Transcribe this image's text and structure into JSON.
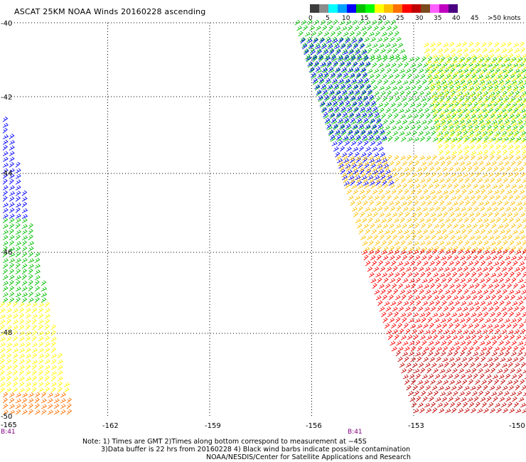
{
  "title": "ASCAT 25KM NOAA Winds 20160228 ascending",
  "legend": {
    "labels": [
      "0",
      "5",
      "10",
      "15",
      "20",
      "25",
      "30",
      "35",
      "40",
      "45",
      ">50 knots"
    ],
    "colors": [
      "#3c3c3c",
      "#8c8c8c",
      "#00ffff",
      "#00a0ff",
      "#0000ff",
      "#00c000",
      "#00ff00",
      "#ffff00",
      "#ffc000",
      "#ff7000",
      "#ff0000",
      "#c00000",
      "#7a4a1e",
      "#ff60ff",
      "#c000c0",
      "#4b0082"
    ]
  },
  "map": {
    "lon_labels": [
      "-165",
      "-162",
      "-159",
      "-156",
      "-153",
      "-150"
    ],
    "lat_labels": [
      "-40",
      "-42",
      "-44",
      "-46",
      "-48",
      "-50"
    ],
    "pass_labels": [
      "B:41",
      "B:41"
    ]
  },
  "notes": {
    "line1": "Note: 1) Times are GMT 2)Times along bottom correspond to measurement at −45S",
    "line2": "3)Data buffer is 22 hrs from 20160228 4) Black wind barbs indicate possible contamination",
    "line3": "NOAA/NESDIS/Center for Satellite Applications and Research"
  },
  "wind_zones": [
    {
      "swath": "east",
      "lat_from": -40.0,
      "lat_to": -41.0,
      "speed_kt": 20,
      "color": "#00c000"
    },
    {
      "swath": "east",
      "lat_from": -41.0,
      "lat_to": -43.3,
      "speed_kt": 17,
      "color": "#00c000"
    },
    {
      "swath": "east",
      "lat_from": -40.5,
      "lat_to": -44.4,
      "speed_kt": 12,
      "color": "#0000ff"
    },
    {
      "swath": "east",
      "lat_from": -40.6,
      "lat_to": -43.6,
      "speed_kt": 27,
      "color": "#ffff00"
    },
    {
      "swath": "east",
      "lat_from": -43.6,
      "lat_to": -46.0,
      "speed_kt": 30,
      "color": "#ffc000"
    },
    {
      "swath": "east",
      "lat_from": -46.0,
      "lat_to": -48.5,
      "speed_kt": 35,
      "color": "#ff0000"
    },
    {
      "swath": "east",
      "lat_from": -48.5,
      "lat_to": -50.3,
      "speed_kt": 38,
      "color": "#c00000"
    },
    {
      "swath": "west",
      "lat_from": -42.6,
      "lat_to": -45.2,
      "speed_kt": 12,
      "color": "#0000ff"
    },
    {
      "swath": "west",
      "lat_from": -45.2,
      "lat_to": -47.3,
      "speed_kt": 18,
      "color": "#00c000"
    },
    {
      "swath": "west",
      "lat_from": -47.3,
      "lat_to": -49.5,
      "speed_kt": 25,
      "color": "#ffff00"
    },
    {
      "swath": "west",
      "lat_from": -49.5,
      "lat_to": -50.4,
      "speed_kt": 32,
      "color": "#ff7000"
    }
  ]
}
